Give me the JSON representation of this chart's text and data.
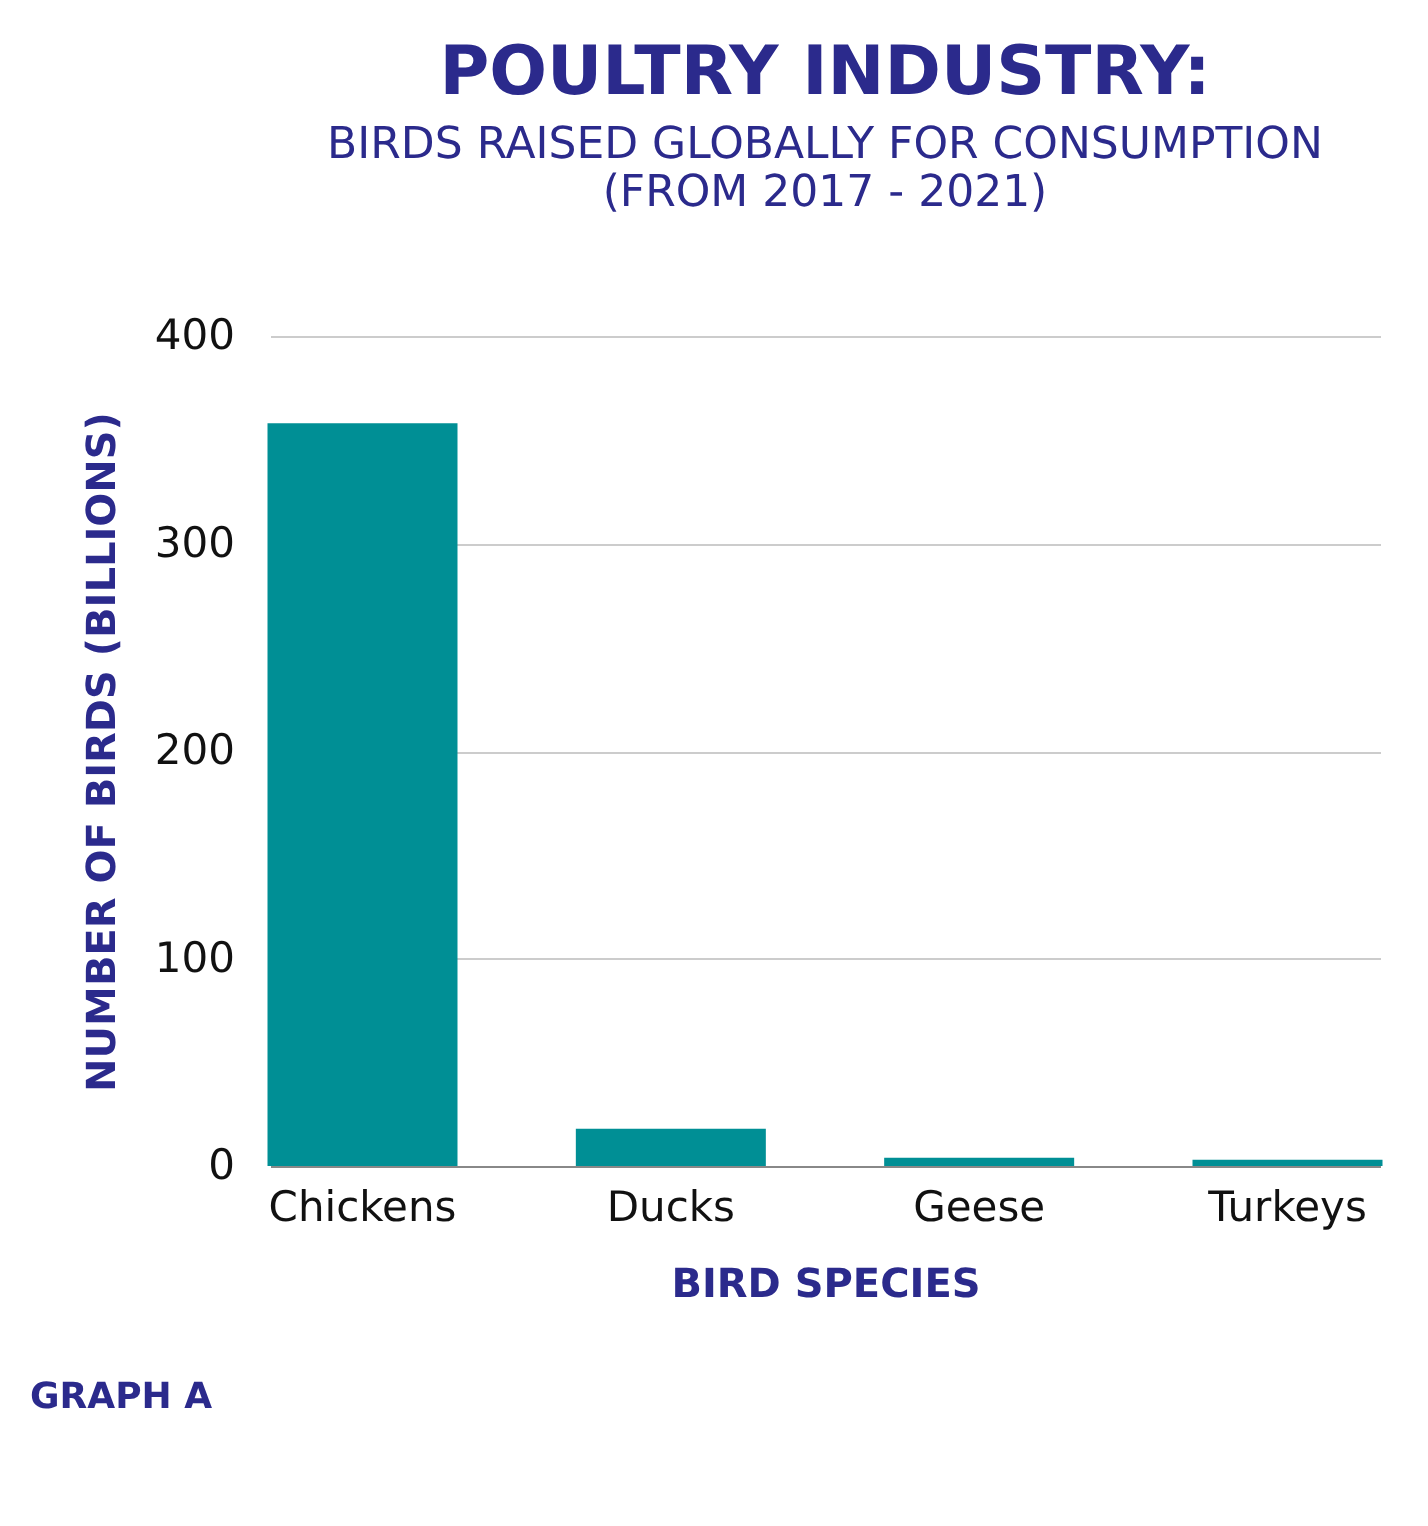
{
  "chart_data": {
    "type": "bar",
    "title": "POULTRY INDUSTRY:",
    "subtitle": [
      "BIRDS RAISED GLOBALLY FOR CONSUMPTION",
      "(FROM 2017 - 2021)"
    ],
    "xlabel": "BIRD SPECIES",
    "ylabel": "NUMBER OF BIRDS (BILLIONS)",
    "categories": [
      "Chickens",
      "Ducks",
      "Geese",
      "Turkeys"
    ],
    "values": [
      358,
      18,
      4,
      3
    ],
    "color": "#008f95",
    "ylim": [
      0,
      400
    ],
    "yticks": [
      0,
      100,
      200,
      300,
      400
    ],
    "grid": "y",
    "annotations": [
      "GRAPH A"
    ]
  }
}
